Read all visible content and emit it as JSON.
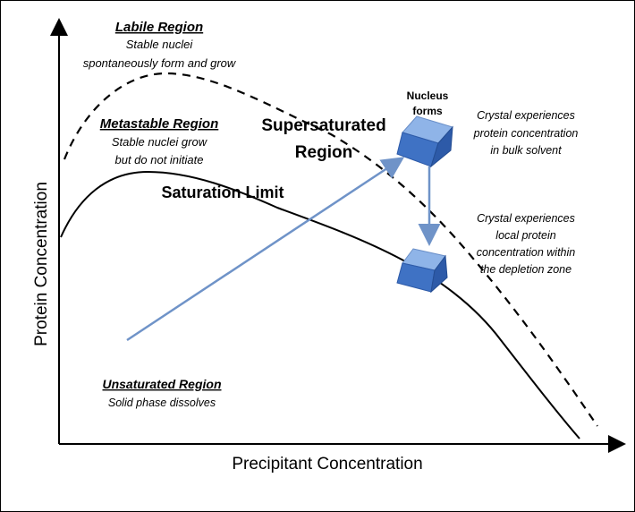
{
  "axes": {
    "y_label": "Protein Concentration",
    "x_label": "Precipitant Concentration"
  },
  "regions": {
    "labile": {
      "title": "Labile Region",
      "line1": "Stable nuclei",
      "line2": "spontaneously form and grow"
    },
    "metastable": {
      "title": "Metastable Region",
      "line1": "Stable nuclei grow",
      "line2": "but do not initiate"
    },
    "supersaturated": {
      "line1": "Supersaturated",
      "line2": "Region"
    },
    "saturation": "Saturation Limit",
    "unsaturated": {
      "title": "Unsaturated Region",
      "line1": "Solid phase dissolves"
    }
  },
  "nucleus": {
    "line1": "Nucleus",
    "line2": "forms"
  },
  "crystal_bulk": {
    "line1": "Crystal experiences",
    "line2": "protein concentration",
    "line3": "in bulk solvent"
  },
  "crystal_local": {
    "line1": "Crystal experiences",
    "line2": "local protein",
    "line3": "concentration within",
    "line4": "the depletion zone"
  },
  "colors": {
    "arrow": "#6f93c8",
    "cube_light": "#8fb4e8",
    "cube_mid": "#4f84d6",
    "cube_dark": "#2d5aa8"
  }
}
